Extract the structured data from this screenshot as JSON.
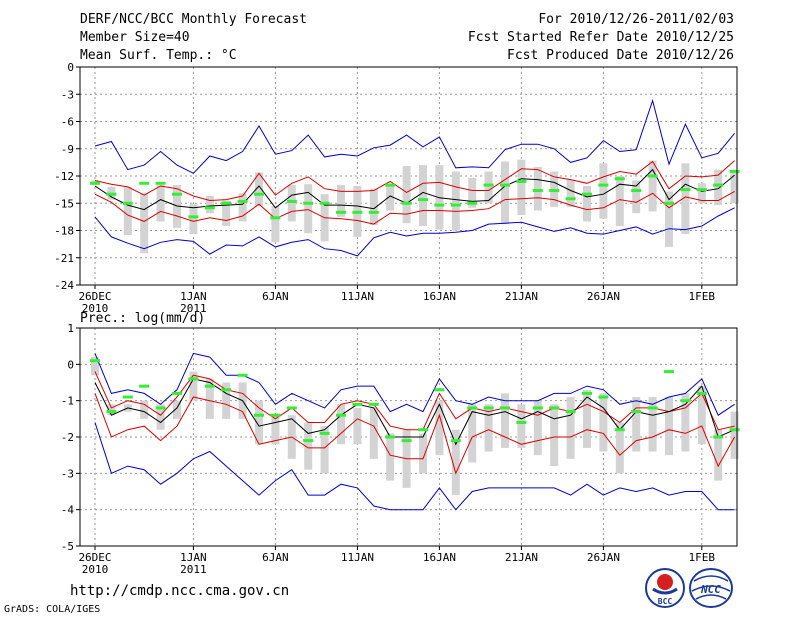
{
  "header": {
    "title": "DERF/NCC/BCC Monthly Forecast",
    "member_size": "Member Size=40",
    "variable": "Mean Surf. Temp.: °C",
    "period": "For 2010/12/26-2011/02/03",
    "started": "Fcst Started Refer Date 2010/12/25",
    "produced": "Fcst Produced Date 2010/12/26"
  },
  "footer": {
    "url": "http://cmdp.ncc.cma.gov.cn",
    "credit": "GrADS: COLA/IGES",
    "logo_left": "BCC",
    "logo_right": "NCC"
  },
  "colors": {
    "envelope": "#0000cc",
    "spread": "#dd0000",
    "mean": "#000000",
    "box": "#d3d3d3",
    "obs": "#33ee33",
    "grid": "#999999"
  },
  "chart_data": [
    {
      "type": "line",
      "title": "Mean Surf. Temp.: °C",
      "xlabel": "",
      "ylabel": "°C",
      "ylim": [
        -24,
        0
      ],
      "yticks": [
        0,
        -3,
        -6,
        -9,
        -12,
        -15,
        -18,
        -21,
        -24
      ],
      "xticks": [
        {
          "day": 0,
          "label": "26DEC",
          "sub": "2010"
        },
        {
          "day": 6,
          "label": "1JAN",
          "sub": "2011"
        },
        {
          "day": 11,
          "label": "6JAN",
          "sub": ""
        },
        {
          "day": 16,
          "label": "11JAN",
          "sub": ""
        },
        {
          "day": 21,
          "label": "16JAN",
          "sub": ""
        },
        {
          "day": 26,
          "label": "21JAN",
          "sub": ""
        },
        {
          "day": 31,
          "label": "26JAN",
          "sub": ""
        },
        {
          "day": 37,
          "label": "1FEB",
          "sub": ""
        }
      ],
      "series": [
        {
          "name": "max",
          "values": [
            -8.7,
            -8.2,
            -11.3,
            -10.8,
            -9.3,
            -10.8,
            -11.7,
            -9.8,
            -10.3,
            -9.3,
            -6.5,
            -9.6,
            -9.2,
            -7.5,
            -9.9,
            -9.6,
            -9.8,
            -8.9,
            -8.6,
            -7.5,
            -8.8,
            -7.7,
            -11.1,
            -11.0,
            -11.1,
            -9.1,
            -8.5,
            -8.5,
            -9.0,
            -10.5,
            -10.0,
            -8.1,
            -9.3,
            -9.1,
            -3.7,
            -10.7,
            -6.3,
            -10.0,
            -9.5,
            -7.3
          ]
        },
        {
          "name": "upper",
          "values": [
            -12.5,
            -12.9,
            -13.2,
            -14.1,
            -13.1,
            -13.4,
            -14.2,
            -14.7,
            -14.6,
            -14.2,
            -11.7,
            -14.1,
            -12.8,
            -12.1,
            -13.4,
            -13.7,
            -13.7,
            -13.6,
            -12.6,
            -13.8,
            -12.8,
            -12.7,
            -13.2,
            -13.6,
            -13.6,
            -12.4,
            -11.2,
            -11.3,
            -12.1,
            -12.4,
            -12.8,
            -12.1,
            -11.5,
            -11.8,
            -10.4,
            -13.4,
            -12.0,
            -12.1,
            -11.9,
            -10.3
          ]
        },
        {
          "name": "mean",
          "values": [
            -13.1,
            -14.3,
            -15.2,
            -15.7,
            -14.6,
            -15.3,
            -15.5,
            -15.3,
            -15.2,
            -15.1,
            -13.1,
            -15.5,
            -14.1,
            -13.8,
            -15.2,
            -15.2,
            -15.3,
            -15.6,
            -14.2,
            -15.0,
            -13.8,
            -14.4,
            -14.6,
            -14.8,
            -14.7,
            -13.1,
            -12.3,
            -12.4,
            -12.7,
            -13.6,
            -14.3,
            -14.0,
            -12.9,
            -13.1,
            -11.3,
            -14.6,
            -12.9,
            -13.7,
            -13.4,
            -11.9
          ]
        },
        {
          "name": "lower",
          "values": [
            -14.0,
            -14.9,
            -16.3,
            -17.0,
            -15.9,
            -16.4,
            -17.0,
            -16.6,
            -16.9,
            -16.4,
            -15.1,
            -16.7,
            -15.9,
            -15.7,
            -16.6,
            -16.7,
            -16.9,
            -17.3,
            -16.1,
            -16.2,
            -15.8,
            -15.8,
            -15.9,
            -15.8,
            -15.6,
            -14.6,
            -14.5,
            -14.4,
            -14.6,
            -15.2,
            -15.7,
            -15.5,
            -14.6,
            -14.9,
            -13.9,
            -15.5,
            -14.3,
            -14.7,
            -14.7,
            -13.7
          ]
        },
        {
          "name": "min",
          "values": [
            -16.5,
            -18.7,
            -19.4,
            -20.0,
            -19.3,
            -19.0,
            -19.2,
            -20.6,
            -19.6,
            -19.7,
            -18.7,
            -19.8,
            -19.3,
            -19.0,
            -20.0,
            -20.2,
            -20.8,
            -18.8,
            -18.2,
            -18.6,
            -18.3,
            -18.3,
            -18.2,
            -18.0,
            -17.3,
            -17.2,
            -17.1,
            -17.6,
            -18.1,
            -17.7,
            -18.3,
            -18.4,
            -18.0,
            -17.6,
            -18.4,
            -17.8,
            -17.9,
            -17.5,
            -16.4,
            -15.5
          ]
        }
      ],
      "box_ranges": [
        [
          -13.0,
          -12.5
        ],
        [
          -14.6,
          -13.2
        ],
        [
          -18.5,
          -13.2
        ],
        [
          -20.5,
          -13.9
        ],
        [
          -17.0,
          -13.0
        ],
        [
          -17.7,
          -13.0
        ],
        [
          -18.4,
          -15.1
        ],
        [
          -16.1,
          -14.2
        ],
        [
          -17.5,
          -14.7
        ],
        [
          -17.0,
          -13.9
        ],
        [
          -15.3,
          -11.6
        ],
        [
          -19.3,
          -15.3
        ],
        [
          -17.0,
          -13.0
        ],
        [
          -18.3,
          -12.9
        ],
        [
          -19.2,
          -14.0
        ],
        [
          -16.5,
          -13.0
        ],
        [
          -18.7,
          -13.1
        ],
        [
          -17.4,
          -13.4
        ],
        [
          -15.8,
          -13.1
        ],
        [
          -17.2,
          -10.9
        ],
        [
          -17.5,
          -10.8
        ],
        [
          -17.9,
          -10.8
        ],
        [
          -18.0,
          -11.5
        ],
        [
          -15.5,
          -12.2
        ],
        [
          -15.0,
          -11.5
        ],
        [
          -17.3,
          -10.4
        ],
        [
          -16.3,
          -10.2
        ],
        [
          -15.8,
          -11.0
        ],
        [
          -15.4,
          -11.5
        ],
        [
          -15.4,
          -12.4
        ],
        [
          -17.0,
          -13.1
        ],
        [
          -16.7,
          -10.6
        ],
        [
          -17.5,
          -12.0
        ],
        [
          -16.1,
          -12.5
        ],
        [
          -15.9,
          -10.3
        ],
        [
          -19.8,
          -13.7
        ],
        [
          -18.4,
          -10.6
        ],
        [
          -15.0,
          -12.8
        ],
        [
          -15.2,
          -11.3
        ],
        [
          -15.0,
          -11.5
        ]
      ],
      "observed": [
        -12.8,
        -14.0,
        -15.0,
        -12.8,
        -12.8,
        -14.0,
        -16.5,
        -15.5,
        -15.0,
        -14.8,
        -14.0,
        -16.6,
        -14.8,
        -15.0,
        -15.0,
        -16.0,
        -16.0,
        -16.0,
        -13.0,
        -15.0,
        -14.6,
        -15.2,
        -15.2,
        -15.0,
        -13.0,
        -13.0,
        -12.6,
        -13.6,
        -13.6,
        -14.5,
        -14.0,
        -13.0,
        -12.3,
        -13.6,
        -12.0,
        -15.0,
        -13.5,
        -13.5,
        -13.0,
        -11.5
      ]
    },
    {
      "type": "line",
      "title": "Prec.: log(mm/d)",
      "xlabel": "",
      "ylabel": "log(mm/d)",
      "ylim": [
        -5,
        1
      ],
      "yticks": [
        1,
        0,
        -1,
        -2,
        -3,
        -4,
        -5
      ],
      "xticks": [
        {
          "day": 0,
          "label": "26DEC",
          "sub": "2010"
        },
        {
          "day": 6,
          "label": "1JAN",
          "sub": "2011"
        },
        {
          "day": 11,
          "label": "6JAN",
          "sub": ""
        },
        {
          "day": 16,
          "label": "11JAN",
          "sub": ""
        },
        {
          "day": 21,
          "label": "16JAN",
          "sub": ""
        },
        {
          "day": 26,
          "label": "21JAN",
          "sub": ""
        },
        {
          "day": 31,
          "label": "26JAN",
          "sub": ""
        },
        {
          "day": 37,
          "label": "1FEB",
          "sub": ""
        }
      ],
      "series": [
        {
          "name": "max",
          "values": [
            0.3,
            -0.8,
            -0.7,
            -0.8,
            -1.1,
            -0.7,
            0.3,
            0.2,
            -0.3,
            -0.3,
            -0.5,
            -1.1,
            -0.8,
            -1.0,
            -1.2,
            -0.7,
            -0.6,
            -0.6,
            -1.3,
            -1.1,
            -1.3,
            -0.4,
            -1.0,
            -1.1,
            -0.9,
            -1.0,
            -1.0,
            -1.0,
            -0.8,
            -0.8,
            -0.6,
            -0.7,
            -1.1,
            -1.0,
            -1.1,
            -0.9,
            -0.8,
            -0.4,
            -1.4,
            -1.1
          ]
        },
        {
          "name": "upper",
          "values": [
            -0.2,
            -1.2,
            -1.0,
            -1.1,
            -1.4,
            -0.9,
            -0.3,
            -0.4,
            -0.7,
            -0.8,
            -1.2,
            -1.5,
            -1.2,
            -1.6,
            -1.6,
            -1.1,
            -1.0,
            -1.1,
            -1.7,
            -1.8,
            -1.8,
            -0.8,
            -1.5,
            -1.2,
            -1.3,
            -1.2,
            -1.3,
            -1.4,
            -1.2,
            -1.3,
            -1.1,
            -1.3,
            -1.6,
            -1.2,
            -1.2,
            -1.3,
            -1.2,
            -0.8,
            -1.8,
            -1.7
          ]
        },
        {
          "name": "mean",
          "values": [
            -0.5,
            -1.4,
            -1.2,
            -1.3,
            -1.6,
            -1.2,
            -0.4,
            -0.5,
            -0.8,
            -1.0,
            -1.7,
            -1.6,
            -1.5,
            -1.9,
            -1.8,
            -1.4,
            -1.1,
            -1.2,
            -2.0,
            -2.0,
            -2.0,
            -1.1,
            -2.2,
            -1.3,
            -1.4,
            -1.3,
            -1.5,
            -1.3,
            -1.5,
            -1.4,
            -0.9,
            -1.2,
            -1.8,
            -1.3,
            -1.4,
            -1.3,
            -1.1,
            -0.6,
            -2.0,
            -1.8
          ]
        },
        {
          "name": "lower",
          "values": [
            -0.8,
            -2.0,
            -1.8,
            -1.7,
            -2.1,
            -1.7,
            -0.9,
            -1.0,
            -1.1,
            -1.3,
            -2.2,
            -2.1,
            -2.0,
            -2.3,
            -2.3,
            -1.9,
            -1.5,
            -1.7,
            -2.5,
            -2.6,
            -2.6,
            -1.4,
            -3.0,
            -2.0,
            -1.8,
            -2.0,
            -2.2,
            -2.1,
            -2.0,
            -2.0,
            -1.8,
            -1.9,
            -2.5,
            -2.1,
            -2.0,
            -1.8,
            -1.9,
            -1.7,
            -2.8,
            -2.0
          ]
        },
        {
          "name": "min",
          "values": [
            -1.6,
            -3.0,
            -2.8,
            -2.9,
            -3.3,
            -3.0,
            -2.6,
            -2.4,
            -2.8,
            -3.2,
            -3.6,
            -3.2,
            -2.9,
            -3.6,
            -3.6,
            -3.3,
            -3.4,
            -3.9,
            -4.0,
            -4.0,
            -4.0,
            -3.4,
            -4.0,
            -3.5,
            -3.4,
            -3.4,
            -3.4,
            -3.4,
            -3.4,
            -3.6,
            -3.3,
            -3.6,
            -3.4,
            -3.5,
            -3.4,
            -3.6,
            -3.5,
            -3.5,
            -4.0,
            -4.0
          ]
        }
      ],
      "box_ranges": [
        [
          -0.3,
          0.2
        ],
        [
          -1.4,
          -1.1
        ],
        [
          -1.3,
          -1.1
        ],
        [
          -1.5,
          -1.0
        ],
        [
          -1.8,
          -1.1
        ],
        [
          -1.5,
          -1.0
        ],
        [
          -1.0,
          -0.2
        ],
        [
          -1.5,
          -0.4
        ],
        [
          -1.5,
          -0.5
        ],
        [
          -1.5,
          -0.5
        ],
        [
          -2.2,
          -1.0
        ],
        [
          -2.2,
          -1.4
        ],
        [
          -2.6,
          -1.4
        ],
        [
          -2.9,
          -1.6
        ],
        [
          -3.0,
          -1.7
        ],
        [
          -2.2,
          -1.1
        ],
        [
          -2.2,
          -1.2
        ],
        [
          -2.6,
          -1.2
        ],
        [
          -3.2,
          -1.9
        ],
        [
          -3.4,
          -1.8
        ],
        [
          -3.0,
          -1.9
        ],
        [
          -2.5,
          -1.0
        ],
        [
          -3.6,
          -1.8
        ],
        [
          -2.7,
          -1.1
        ],
        [
          -2.4,
          -1.1
        ],
        [
          -2.3,
          -0.8
        ],
        [
          -2.3,
          -1.1
        ],
        [
          -2.5,
          -1.0
        ],
        [
          -2.8,
          -1.1
        ],
        [
          -2.6,
          -0.9
        ],
        [
          -2.3,
          -0.7
        ],
        [
          -2.4,
          -0.8
        ],
        [
          -3.0,
          -1.6
        ],
        [
          -2.4,
          -0.9
        ],
        [
          -2.4,
          -0.9
        ],
        [
          -2.5,
          -0.9
        ],
        [
          -2.4,
          -0.8
        ],
        [
          -2.2,
          -0.6
        ],
        [
          -3.2,
          -1.8
        ],
        [
          -2.6,
          -1.3
        ]
      ],
      "observed": [
        0.1,
        -1.3,
        -0.9,
        -0.6,
        -1.2,
        -0.8,
        -0.4,
        -0.6,
        -0.7,
        -0.3,
        -1.4,
        -1.4,
        -1.2,
        -2.1,
        -1.9,
        -1.4,
        -1.1,
        -1.1,
        -2.0,
        -2.1,
        -1.8,
        -0.7,
        -2.1,
        -1.2,
        -1.2,
        -1.2,
        -1.6,
        -1.2,
        -1.2,
        -1.3,
        -0.8,
        -0.9,
        -1.8,
        -1.3,
        -1.2,
        -0.2,
        -1.0,
        -0.8,
        -2.0,
        -1.8
      ]
    }
  ]
}
